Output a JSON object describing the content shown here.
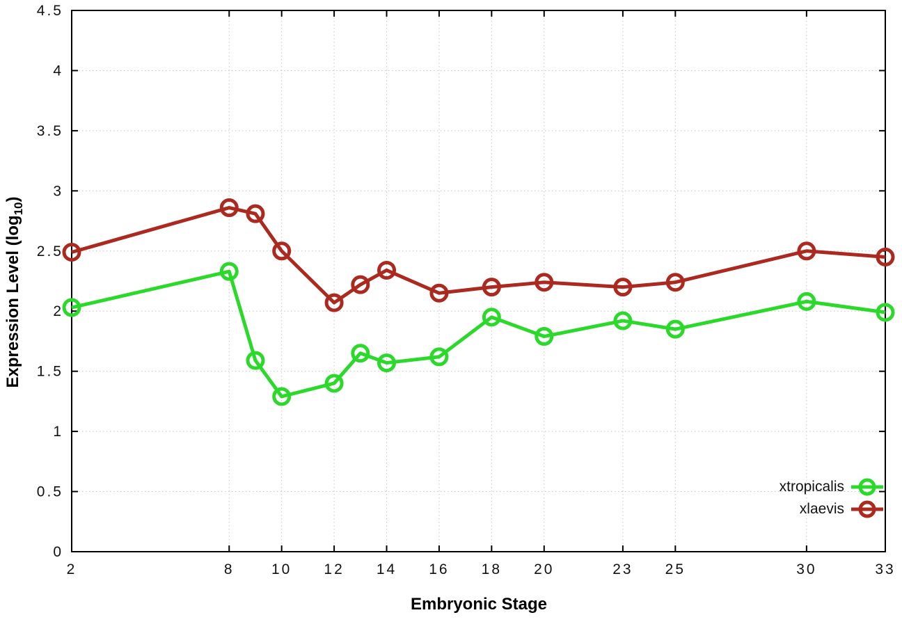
{
  "chart_data": {
    "type": "line",
    "title": "",
    "xlabel": "Embryonic Stage",
    "ylabel": "Expression Level (log10)",
    "ylabel_parts": {
      "base": "Expression Level (log",
      "sub": "10",
      "close": ")"
    },
    "x": [
      2,
      8,
      9,
      10,
      12,
      13,
      14,
      16,
      18,
      20,
      23,
      25,
      30,
      33
    ],
    "xlim": [
      2,
      33
    ],
    "ylim": [
      0,
      4.5
    ],
    "xticks": [
      2,
      8,
      10,
      12,
      14,
      16,
      18,
      20,
      23,
      25,
      30,
      33
    ],
    "xtick_labels": [
      "2",
      "8",
      "10",
      "12",
      "14",
      "16",
      "18",
      "20",
      "23",
      "25",
      "30",
      "33"
    ],
    "yticks": [
      0,
      0.5,
      1,
      1.5,
      2,
      2.5,
      3,
      3.5,
      4,
      4.5
    ],
    "ytick_labels": [
      "0",
      "0.5",
      "1",
      "1.5",
      "2",
      "2.5",
      "3",
      "3.5",
      "4",
      "4.5"
    ],
    "grid": true,
    "grid_style": "dotted",
    "legend_position": "inside-bottom-right",
    "marker": "open-circle",
    "series": [
      {
        "name": "xtropicalis",
        "color": "#2bd92b",
        "values": [
          2.03,
          2.33,
          1.59,
          1.29,
          1.4,
          1.65,
          1.57,
          1.62,
          1.95,
          1.79,
          1.92,
          1.85,
          2.08,
          1.99
        ]
      },
      {
        "name": "xlaevis",
        "color": "#ab291f",
        "values": [
          2.49,
          2.86,
          2.81,
          2.5,
          2.07,
          2.22,
          2.34,
          2.15,
          2.2,
          2.24,
          2.2,
          2.24,
          2.5,
          2.45
        ]
      }
    ]
  }
}
